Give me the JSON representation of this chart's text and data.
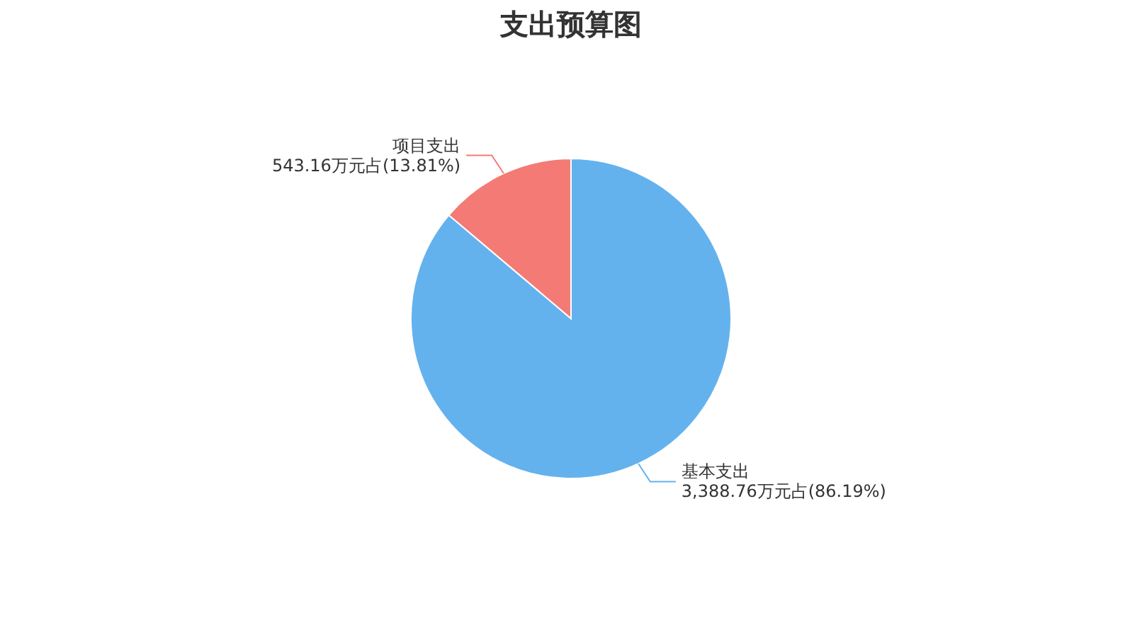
{
  "chart_data": {
    "type": "pie",
    "title": "支出预算图",
    "categories": [
      "基本支出",
      "项目支出"
    ],
    "values": [
      3388.76,
      543.16
    ],
    "colors": [
      "#63b2ee",
      "#f47a75"
    ],
    "value_labels": [
      "3,388.76万元占(86.19%)",
      "543.16万元占(13.81%)"
    ],
    "legend": false
  }
}
